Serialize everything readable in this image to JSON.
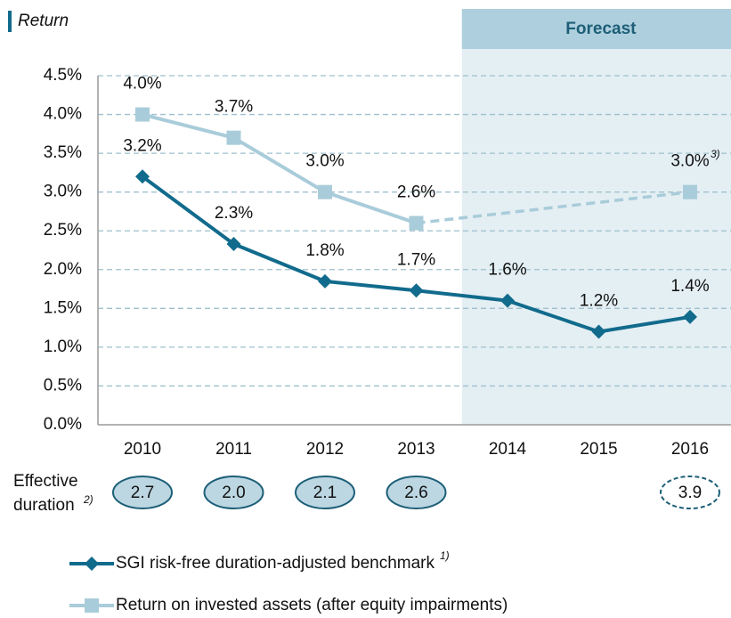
{
  "chart_data": {
    "type": "line",
    "title": "Return",
    "categories": [
      "2010",
      "2011",
      "2012",
      "2013",
      "2014",
      "2015",
      "2016"
    ],
    "ylim": [
      0,
      4.5
    ],
    "yticks": [
      {
        "value": 0,
        "label": "0.0%"
      },
      {
        "value": 0.5,
        "label": "0.5%"
      },
      {
        "value": 1,
        "label": "1.0%"
      },
      {
        "value": 1.5,
        "label": "1.5%"
      },
      {
        "value": 2,
        "label": "2.0%"
      },
      {
        "value": 2.5,
        "label": "2.5%"
      },
      {
        "value": 3,
        "label": "3.0%"
      },
      {
        "value": 3.5,
        "label": "3.5%"
      },
      {
        "value": 4,
        "label": "4.0%"
      },
      {
        "value": 4.5,
        "label": "4.5%"
      }
    ],
    "grid": true,
    "forecast": {
      "label": "Forecast",
      "start": "2014"
    },
    "series": [
      {
        "name": "SGI risk-free duration-adjusted benchmark",
        "footnote": "1)",
        "color": "#116b8c",
        "marker": "diamond",
        "values": [
          3.2,
          2.33,
          1.85,
          1.73,
          1.6,
          1.2,
          1.39
        ],
        "value_labels": [
          "3.2%",
          "2.3%",
          "1.8%",
          "1.7%",
          "1.6%",
          "1.2%",
          "1.4%"
        ]
      },
      {
        "name": "Return on invested assets (after equity impairments)",
        "color": "#a9ccda",
        "marker": "square",
        "gap_style": "dashed",
        "values": [
          4.0,
          3.7,
          3.0,
          2.6,
          null,
          null,
          3.0
        ],
        "value_labels": [
          "4.0%",
          "3.7%",
          "3.0%",
          "2.6%",
          null,
          null,
          "3.0%"
        ],
        "label_footnotes": [
          null,
          null,
          null,
          null,
          null,
          null,
          "3)"
        ]
      }
    ],
    "duration": {
      "label_lines": [
        "Effective",
        "duration"
      ],
      "footnote": "2)",
      "values": [
        2.7,
        2.0,
        2.1,
        2.6,
        null,
        null,
        3.9
      ],
      "value_labels": [
        "2.7",
        "2.0",
        "2.1",
        "2.6",
        null,
        null,
        "3.9"
      ],
      "dashed": [
        false,
        false,
        false,
        false,
        false,
        false,
        true
      ]
    }
  }
}
